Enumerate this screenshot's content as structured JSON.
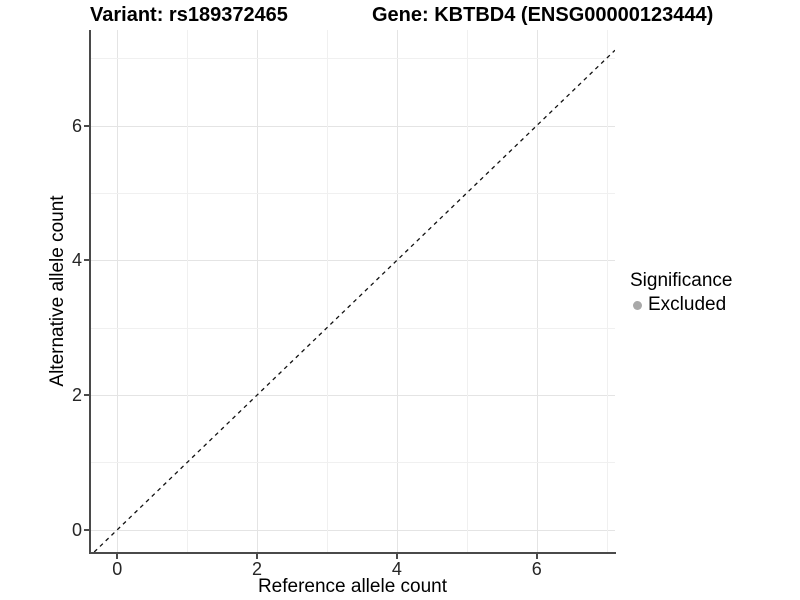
{
  "figure": {
    "background": "#ffffff"
  },
  "chart_data": {
    "type": "scatter",
    "title_left": "Variant: rs189372465",
    "title_right": "Gene: KBTBD4 (ENSG00000123444)",
    "xlabel": "Reference allele count",
    "ylabel": "Alternative allele count",
    "x_ticks": [
      0,
      2,
      4,
      6
    ],
    "x_minor_ticks": [
      1,
      3,
      5,
      7
    ],
    "y_ticks": [
      0,
      2,
      4,
      6
    ],
    "y_minor_ticks": [
      1,
      3,
      5,
      7
    ],
    "xlim": [
      -0.39,
      7.12
    ],
    "ylim": [
      -0.33,
      7.42
    ],
    "grid": "major+minor",
    "points": [],
    "reference_line": {
      "equation": "y = x",
      "style": "dashed",
      "color": "#111111"
    },
    "legend": {
      "title": "Significance",
      "position": "right",
      "entries": [
        {
          "label": "Excluded",
          "color": "#a9a9a9",
          "marker": "circle"
        }
      ]
    },
    "colors": {
      "major_grid": "#e4e4e4",
      "minor_grid": "#f0f0f0",
      "axis_line": "#4a4a4a",
      "tick_text": "#262626",
      "title_text": "#000000"
    }
  }
}
